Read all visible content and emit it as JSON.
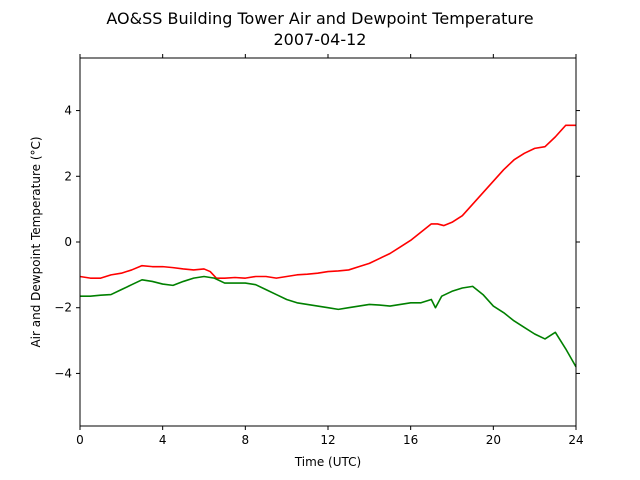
{
  "chart_data": {
    "type": "line",
    "title": "AO&SS Building Tower Air and Dewpoint Temperature",
    "subtitle": "2007-04-12",
    "xlabel": "Time (UTC)",
    "ylabel": "Air and Dewpoint Temperature (°C)",
    "xlim": [
      0,
      24
    ],
    "ylim": [
      -5.6,
      5.6
    ],
    "xticks": [
      0,
      4,
      8,
      12,
      16,
      20,
      24
    ],
    "yticks": [
      -4,
      -2,
      0,
      2,
      4
    ],
    "grid": false,
    "legend": "none",
    "series": [
      {
        "color": "#ff0000",
        "x": [
          0,
          0.5,
          1,
          1.5,
          2,
          2.5,
          3,
          3.5,
          4,
          4.5,
          5,
          5.5,
          6,
          6.3,
          6.6,
          7,
          7.5,
          8,
          8.5,
          9,
          9.5,
          10,
          10.5,
          11,
          11.5,
          12,
          12.5,
          13,
          13.5,
          14,
          14.5,
          15,
          15.5,
          16,
          16.5,
          17,
          17.3,
          17.6,
          18,
          18.5,
          19,
          19.5,
          20,
          20.5,
          21,
          21.5,
          22,
          22.5,
          23,
          23.5,
          24
        ],
        "values": [
          -1.05,
          -1.1,
          -1.1,
          -1.0,
          -0.95,
          -0.85,
          -0.72,
          -0.75,
          -0.75,
          -0.78,
          -0.82,
          -0.85,
          -0.82,
          -0.9,
          -1.1,
          -1.1,
          -1.08,
          -1.1,
          -1.05,
          -1.05,
          -1.1,
          -1.05,
          -1.0,
          -0.98,
          -0.95,
          -0.9,
          -0.88,
          -0.85,
          -0.75,
          -0.65,
          -0.5,
          -0.35,
          -0.15,
          0.05,
          0.3,
          0.55,
          0.55,
          0.5,
          0.6,
          0.8,
          1.15,
          1.5,
          1.85,
          2.2,
          2.5,
          2.7,
          2.85,
          2.9,
          3.2,
          3.55,
          3.55
        ]
      },
      {
        "color": "#008000",
        "x": [
          0,
          0.5,
          1,
          1.5,
          2,
          2.5,
          3,
          3.5,
          4,
          4.5,
          5,
          5.5,
          6,
          6.5,
          7,
          7.5,
          8,
          8.5,
          9,
          9.5,
          10,
          10.5,
          11,
          11.5,
          12,
          12.5,
          13,
          13.5,
          14,
          14.5,
          15,
          15.5,
          16,
          16.5,
          17,
          17.2,
          17.5,
          18,
          18.5,
          19,
          19.5,
          20,
          20.5,
          21,
          21.5,
          22,
          22.5,
          23,
          23.5,
          24
        ],
        "values": [
          -1.65,
          -1.65,
          -1.62,
          -1.6,
          -1.45,
          -1.3,
          -1.15,
          -1.2,
          -1.28,
          -1.32,
          -1.2,
          -1.1,
          -1.05,
          -1.1,
          -1.25,
          -1.25,
          -1.25,
          -1.3,
          -1.45,
          -1.6,
          -1.75,
          -1.85,
          -1.9,
          -1.95,
          -2.0,
          -2.05,
          -2.0,
          -1.95,
          -1.9,
          -1.92,
          -1.95,
          -1.9,
          -1.85,
          -1.85,
          -1.75,
          -2.0,
          -1.65,
          -1.5,
          -1.4,
          -1.35,
          -1.6,
          -1.95,
          -2.15,
          -2.4,
          -2.6,
          -2.8,
          -2.95,
          -2.75,
          -3.25,
          -3.8
        ]
      }
    ]
  }
}
